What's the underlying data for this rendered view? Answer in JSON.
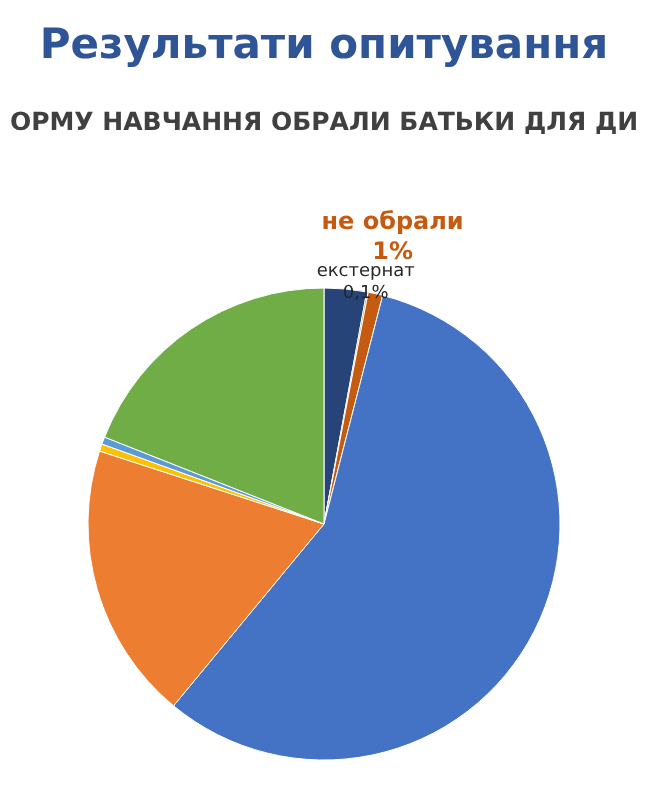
{
  "chart_data": {
    "type": "pie",
    "title": "Результати опитування",
    "subtitle": "ОРМУ НАВЧАННЯ ОБРАЛИ БАТЬКИ ДЛЯ ДИ",
    "categories": [
      null,
      "екстернат",
      "не обрали",
      null,
      null,
      null,
      null,
      null
    ],
    "values": [
      2.9,
      0.1,
      1,
      57,
      19,
      0.5,
      0.5,
      19
    ],
    "colors": [
      "#264478",
      "#7f6000",
      "#c55a11",
      "#4472c4",
      "#ed7d31",
      "#ffc000",
      "#5b9bd5",
      "#70ad47"
    ],
    "value_labels": [
      null,
      "0,1%",
      "1%",
      null,
      null,
      null,
      null,
      null
    ],
    "legend": false
  }
}
